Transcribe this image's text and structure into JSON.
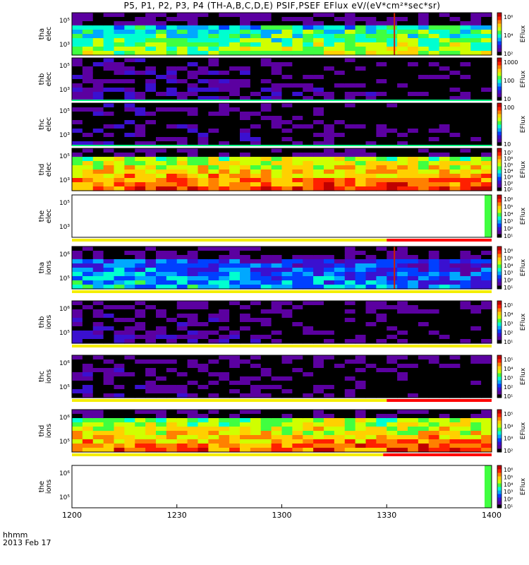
{
  "title": "P5, P1, P2, P3, P4  (TH-A,B,C,D,E) PSIF,PSEF EFlux eV/(eV*cm²*sec*sr)",
  "footer": {
    "label_line1": "hhmm",
    "label_line2": "2013 Feb 17"
  },
  "colors": {
    "quality_good": "#f4ee00",
    "quality_flag": "#ff0000",
    "separator_line": "#00ff80",
    "background": "#ffffff",
    "colormap": [
      "#000000",
      "#5b00a0",
      "#3a10d0",
      "#0040ff",
      "#00a8ff",
      "#00ffd0",
      "#40ff40",
      "#d0ff00",
      "#ffd000",
      "#ff8000",
      "#ff2000",
      "#c00000"
    ]
  },
  "chart_data": {
    "type": "heatmap",
    "x_tick_labels": [
      "1200",
      "1230",
      "1300",
      "1330",
      "1400"
    ],
    "x_range": [
      "1200",
      "1400"
    ],
    "panels": [
      {
        "id": "tha-elec",
        "ylabel": [
          "tha",
          "elec"
        ],
        "ytick_labels": [
          "10⁵",
          "10³"
        ],
        "colorbar_label": "EFlux",
        "colorbar_ticks": [
          "10⁶",
          "10⁴",
          "10²"
        ],
        "level": 0.62,
        "top_cutoff": 0.72,
        "spike_at": "1332",
        "quality_bar": "none"
      },
      {
        "id": "thb-elec",
        "ylabel": [
          "thb",
          "elec"
        ],
        "ytick_labels": [
          "10⁵",
          "10³"
        ],
        "colorbar_label": "EFlux",
        "colorbar_ticks": [
          "1000",
          "100",
          "10"
        ],
        "level": 0.15,
        "top_cutoff": 1.0,
        "spike_at": "",
        "quality_bar": "line"
      },
      {
        "id": "thc-elec",
        "ylabel": [
          "thc",
          "elec"
        ],
        "ytick_labels": [
          "10⁵",
          "10³"
        ],
        "colorbar_label": "EFlux",
        "colorbar_ticks": [
          "100",
          "10"
        ],
        "level": 0.12,
        "top_cutoff": 1.0,
        "spike_at": "",
        "quality_bar": "line"
      },
      {
        "id": "thd-elec",
        "ylabel": [
          "thd",
          "elec"
        ],
        "ytick_labels": [
          "10⁵",
          "10³"
        ],
        "colorbar_label": "EFlux",
        "colorbar_ticks": [
          "10⁷",
          "10⁶",
          "10⁵",
          "10⁴",
          "10³",
          "10²",
          "10¹"
        ],
        "level": 0.88,
        "top_cutoff": 0.8,
        "spike_at": "",
        "quality_bar": "none"
      },
      {
        "id": "the-elec",
        "ylabel": [
          "the",
          "elec"
        ],
        "ytick_labels": [
          "10⁵",
          "10³"
        ],
        "colorbar_label": "EFlux",
        "colorbar_ticks": [
          "10⁶",
          "10⁵",
          "10⁴",
          "10³",
          "10²",
          "10¹"
        ],
        "level": 0,
        "top_cutoff": 0,
        "spike_at": "",
        "quality_bar": "split",
        "quality_split_at": "1330"
      },
      {
        "id": "tha-ions",
        "ylabel": [
          "tha",
          "ions"
        ],
        "ytick_labels": [
          "10⁶",
          "10⁵"
        ],
        "colorbar_label": "EFlux",
        "colorbar_ticks": [
          "10⁶",
          "10⁵",
          "10⁴",
          "10³",
          "10²",
          "10¹"
        ],
        "level": 0.45,
        "top_cutoff": 0.75,
        "spike_at": "1332",
        "quality_bar": "yellow"
      },
      {
        "id": "thb-ions",
        "ylabel": [
          "thb",
          "ions"
        ],
        "ytick_labels": [
          "10⁶",
          "10⁵"
        ],
        "colorbar_label": "EFlux",
        "colorbar_ticks": [
          "10⁵",
          "10⁴",
          "10³",
          "10²",
          "10¹"
        ],
        "level": 0.12,
        "top_cutoff": 0.75,
        "spike_at": "",
        "quality_bar": "yellow"
      },
      {
        "id": "thc-ions",
        "ylabel": [
          "thc",
          "ions"
        ],
        "ytick_labels": [
          "10⁶",
          "10⁵"
        ],
        "colorbar_label": "EFlux",
        "colorbar_ticks": [
          "10⁵",
          "10⁴",
          "10³",
          "10²",
          "10¹"
        ],
        "level": 0.1,
        "top_cutoff": 0.75,
        "spike_at": "",
        "quality_bar": "split",
        "quality_split_at": "1330"
      },
      {
        "id": "thd-ions",
        "ylabel": [
          "thd",
          "ions"
        ],
        "ytick_labels": [
          "10⁶",
          "10⁵"
        ],
        "colorbar_label": "EFlux",
        "colorbar_ticks": [
          "10⁵",
          "10⁴",
          "10³",
          "10²"
        ],
        "level": 0.85,
        "top_cutoff": 0.85,
        "spike_at": "",
        "quality_bar": "split",
        "quality_split_at": "1329"
      },
      {
        "id": "the-ions",
        "ylabel": [
          "the",
          "ions"
        ],
        "ytick_labels": [
          "10⁶",
          "10⁵"
        ],
        "colorbar_label": "EFlux",
        "colorbar_ticks": [
          "10⁶",
          "10⁵",
          "10⁴",
          "10³",
          "10²",
          "10¹"
        ],
        "level": 0,
        "top_cutoff": 0,
        "spike_at": "",
        "quality_bar": "none"
      }
    ]
  }
}
